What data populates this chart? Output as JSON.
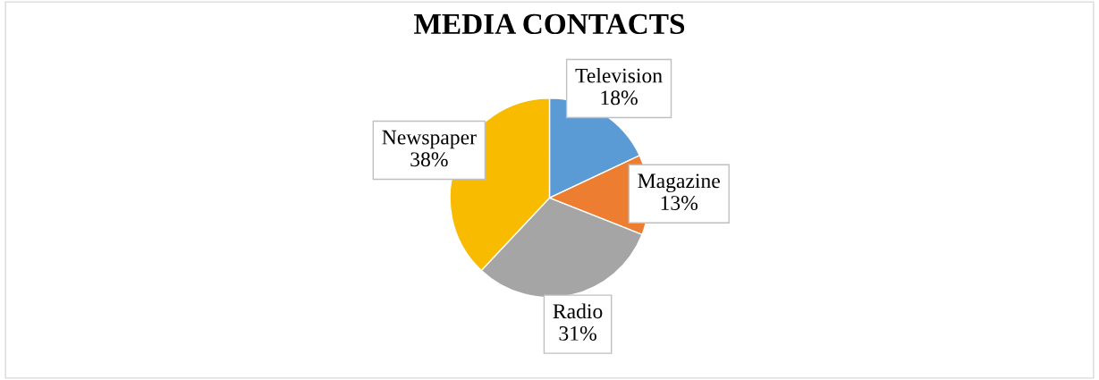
{
  "chart_data": {
    "type": "pie",
    "title": "MEDIA CONTACTS",
    "categories": [
      "Television",
      "Magazine",
      "Radio",
      "Newspaper"
    ],
    "values": [
      18,
      13,
      31,
      38
    ],
    "value_labels": [
      "18%",
      "13%",
      "31%",
      "38%"
    ],
    "colors": [
      "#5b9bd5",
      "#ed7d31",
      "#a5a5a5",
      "#f8bb00"
    ],
    "legend": false
  }
}
